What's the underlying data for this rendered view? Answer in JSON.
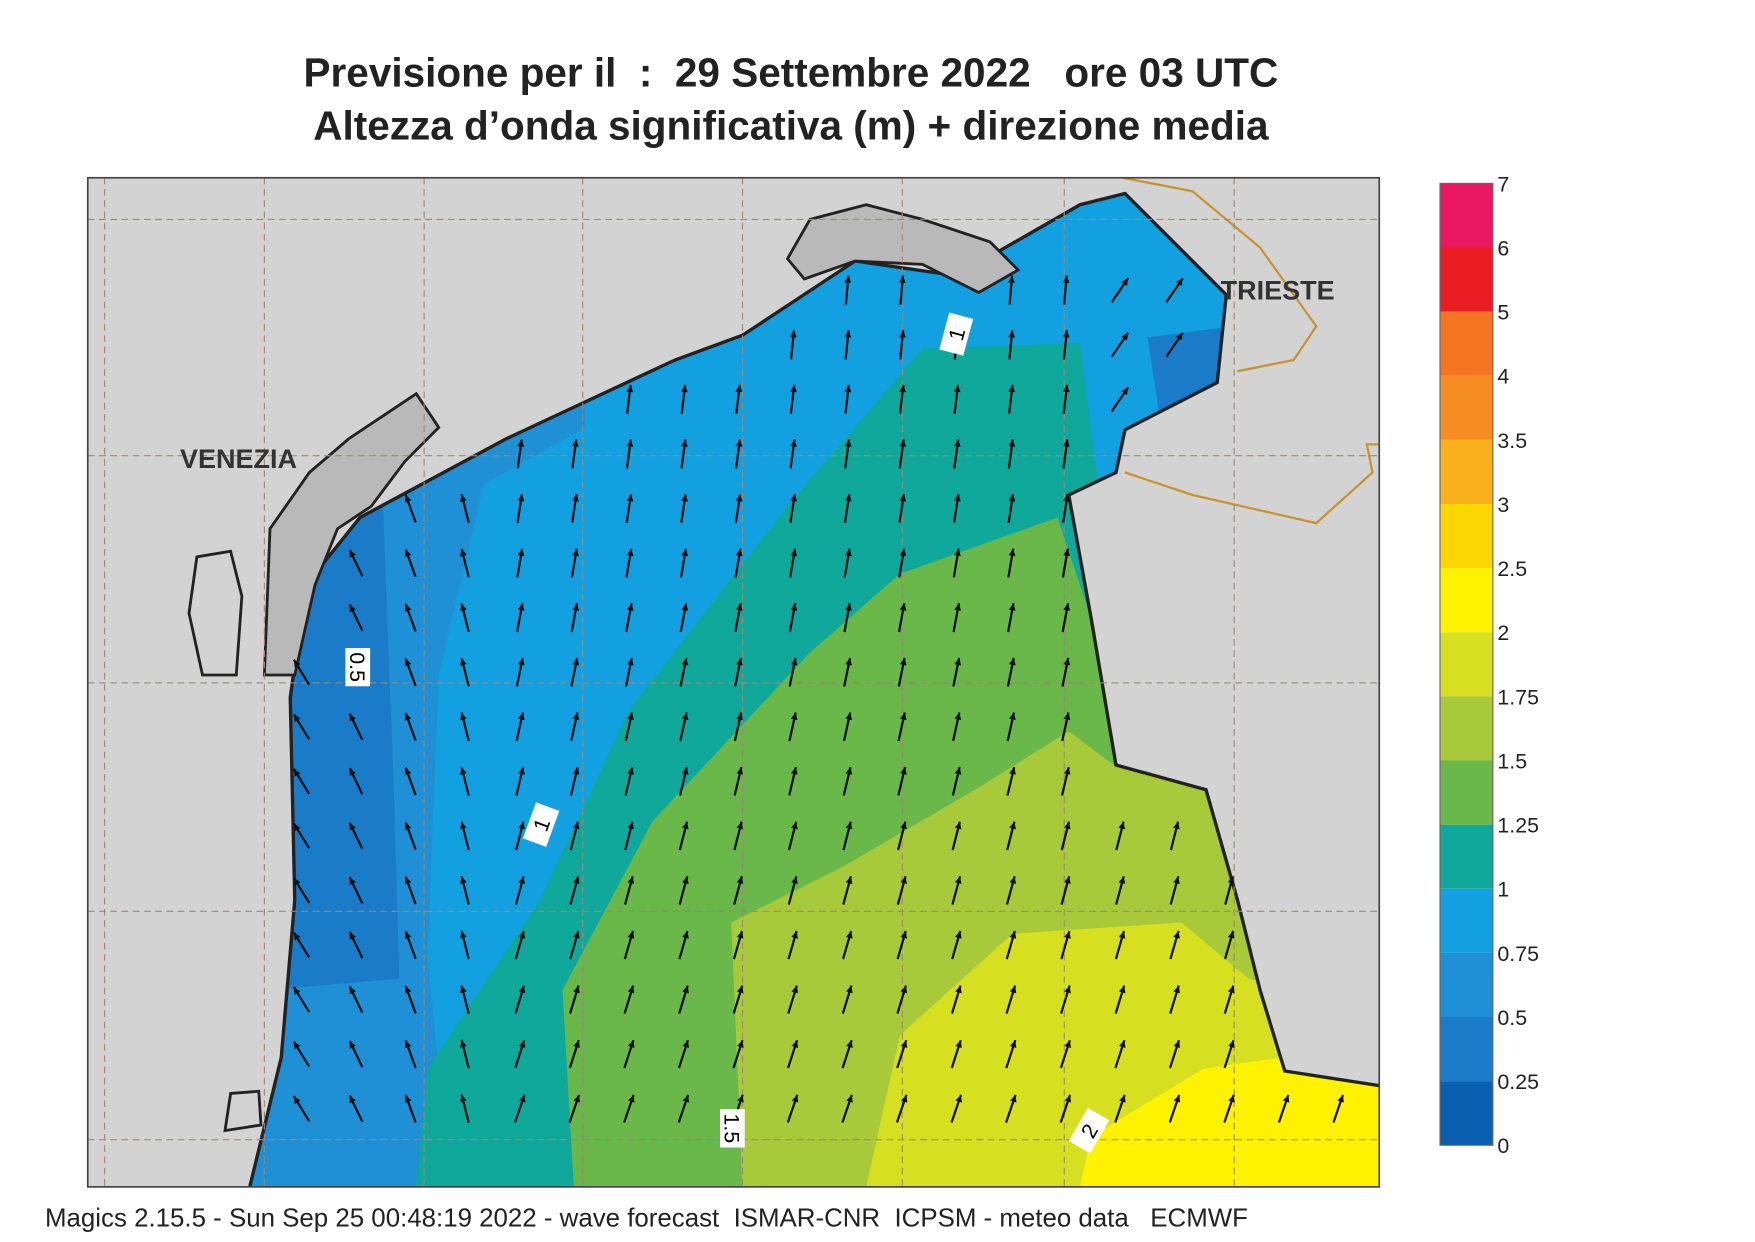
{
  "header": {
    "title_line1": "Previsione per il  :  29 Settembre 2022   ore 03 UTC",
    "title_line2": "Altezza d’onda significativa (m) + direzione media"
  },
  "map": {
    "places": [
      "VENEZIA",
      "TRIESTE"
    ],
    "contour_labels": [
      1,
      0.5,
      1,
      1.5,
      2
    ]
  },
  "legend": {
    "ticks": [
      0,
      0.25,
      0.5,
      0.75,
      1,
      1.25,
      1.5,
      1.75,
      2,
      2.5,
      3,
      3.5,
      4,
      5,
      6,
      7
    ],
    "colors": [
      "#0a5fb0",
      "#1a7cc8",
      "#1f8fd6",
      "#12a0e0",
      "#10a89a",
      "#6ab84a",
      "#a8c93a",
      "#d6e020",
      "#fff200",
      "#fcd600",
      "#f9b01c",
      "#f68d22",
      "#f47421",
      "#ec1c24",
      "#ea1763"
    ]
  },
  "footer": "Magics 2.15.5 - Sun Sep 25 00:48:19 2022 - wave forecast  ISMAR-CNR  ICPSM - meteo data   ECMWF"
}
